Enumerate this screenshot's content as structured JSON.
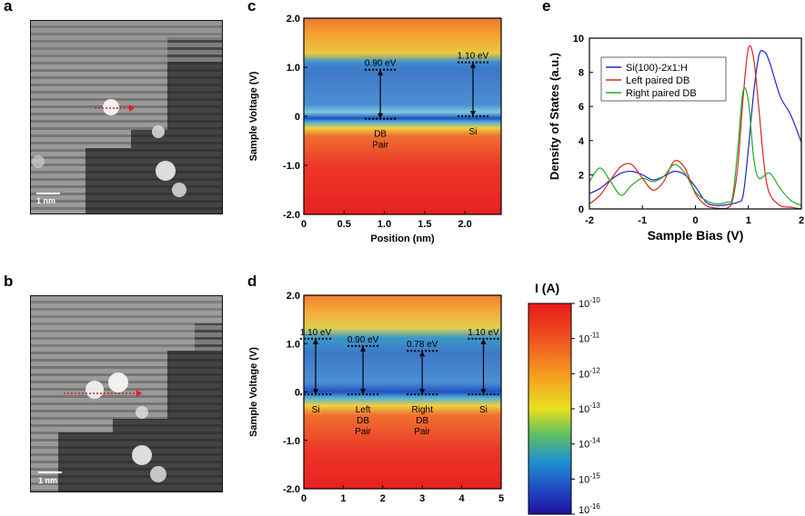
{
  "panels": {
    "a": "a",
    "b": "b",
    "c": "c",
    "d": "d",
    "e": "e"
  },
  "scale_bar_label": "1 nm",
  "chart_data": [
    {
      "id": "c",
      "type": "heatmap",
      "xlabel": "Position (nm)",
      "ylabel": "Sample Voltage (V)",
      "xlim": [
        0,
        2.45
      ],
      "ylim": [
        -2.0,
        2.0
      ],
      "xticks": [
        "0",
        "0.5",
        "1.0",
        "1.5",
        "2.0"
      ],
      "xtick_values": [
        0,
        0.5,
        1.0,
        1.5,
        2.0
      ],
      "yticks": [
        "2.0",
        "1.0",
        "0",
        "-1.0",
        "-2.0"
      ],
      "ytick_values": [
        2.0,
        1.0,
        0,
        -1.0,
        -2.0
      ],
      "gaps": [
        {
          "label": "0.90 eV",
          "x": 0.95,
          "top": 0.95,
          "bottom": -0.05,
          "site": [
            "DB",
            "Pair"
          ]
        },
        {
          "label": "1.10 eV",
          "x": 2.1,
          "top": 1.1,
          "bottom": 0.0,
          "site": [
            "Si"
          ]
        }
      ]
    },
    {
      "id": "d",
      "type": "heatmap",
      "xlabel": "",
      "ylabel": "Sample Voltage (V)",
      "xlim": [
        0,
        5.0
      ],
      "ylim": [
        -2.0,
        2.0
      ],
      "xticks": [
        "0",
        "1",
        "2",
        "3",
        "4",
        "5"
      ],
      "xtick_values": [
        0,
        1,
        2,
        3,
        4,
        5
      ],
      "yticks": [
        "2.0",
        "1.0",
        "0",
        "-1.0",
        "-2.0"
      ],
      "ytick_values": [
        2.0,
        1.0,
        0,
        -1.0,
        -2.0
      ],
      "gaps": [
        {
          "label": "1.10 eV",
          "x": 0.3,
          "top": 1.1,
          "bottom": -0.05,
          "site": [
            "Si"
          ]
        },
        {
          "label": "0.90 eV",
          "x": 1.5,
          "top": 0.95,
          "bottom": -0.05,
          "site": [
            "Left",
            "DB",
            "Pair"
          ]
        },
        {
          "label": "0.78 eV",
          "x": 3.0,
          "top": 0.85,
          "bottom": -0.05,
          "site": [
            "Right",
            "DB",
            "Pair"
          ]
        },
        {
          "label": "1.10 eV",
          "x": 4.55,
          "top": 1.1,
          "bottom": -0.05,
          "site": [
            "Si"
          ]
        }
      ]
    },
    {
      "id": "e",
      "type": "line",
      "xlabel": "Sample Bias (V)",
      "ylabel": "Density of States (a.u.)",
      "xlim": [
        -2,
        2
      ],
      "ylim": [
        0,
        10
      ],
      "xticks": [
        "-2",
        "-1",
        "0",
        "1",
        "2"
      ],
      "xtick_values": [
        -2,
        -1,
        0,
        1,
        2
      ],
      "yticks": [
        "10",
        "8",
        "6",
        "4",
        "2",
        "0"
      ],
      "ytick_values": [
        10,
        8,
        6,
        4,
        2,
        0
      ],
      "legend_position": "top-right",
      "series": [
        {
          "name": "Si(100)-2x1:H",
          "color": "#2222cc",
          "x": [
            -2,
            -1.8,
            -1.6,
            -1.4,
            -1.2,
            -1.0,
            -0.8,
            -0.6,
            -0.4,
            -0.2,
            0.0,
            0.2,
            0.4,
            0.6,
            0.8,
            0.9,
            1.0,
            1.1,
            1.2,
            1.3,
            1.4,
            1.6,
            1.8,
            2.0
          ],
          "y": [
            0.9,
            1.2,
            1.7,
            2.1,
            2.2,
            2.0,
            1.7,
            1.9,
            2.2,
            2.0,
            1.3,
            0.4,
            0.2,
            0.25,
            0.4,
            0.8,
            3.5,
            6.8,
            9.0,
            9.2,
            8.6,
            6.6,
            5.5,
            3.9
          ]
        },
        {
          "name": "Left paired DB",
          "color": "#dd2222",
          "x": [
            -2,
            -1.8,
            -1.6,
            -1.4,
            -1.2,
            -1.0,
            -0.8,
            -0.6,
            -0.4,
            -0.2,
            0.0,
            0.2,
            0.4,
            0.6,
            0.7,
            0.8,
            0.9,
            1.0,
            1.1,
            1.2,
            1.3,
            1.4,
            1.6,
            1.8,
            2.0
          ],
          "y": [
            0.3,
            0.8,
            1.7,
            2.5,
            2.6,
            1.8,
            1.1,
            1.6,
            2.8,
            2.4,
            0.9,
            0.2,
            0.05,
            0.05,
            0.5,
            2.5,
            6.5,
            9.4,
            8.8,
            5.8,
            2.5,
            0.9,
            0.2,
            0.1,
            0.0
          ]
        },
        {
          "name": "Right paired DB",
          "color": "#22aa22",
          "x": [
            -2,
            -1.8,
            -1.6,
            -1.4,
            -1.2,
            -1.0,
            -0.8,
            -0.6,
            -0.4,
            -0.2,
            0.0,
            0.2,
            0.4,
            0.6,
            0.7,
            0.8,
            0.9,
            1.0,
            1.1,
            1.2,
            1.4,
            1.6,
            1.8,
            2.0
          ],
          "y": [
            1.6,
            2.4,
            1.6,
            0.8,
            1.4,
            1.8,
            1.6,
            1.9,
            2.6,
            2.1,
            1.0,
            0.5,
            0.3,
            0.4,
            0.7,
            3.5,
            6.9,
            6.3,
            3.0,
            1.8,
            2.1,
            1.2,
            0.5,
            0.2
          ]
        }
      ]
    }
  ],
  "colorbar": {
    "title": "I (A)",
    "labels": [
      {
        "base": "10",
        "exp": "-10"
      },
      {
        "base": "10",
        "exp": "-11"
      },
      {
        "base": "10",
        "exp": "-12"
      },
      {
        "base": "10",
        "exp": "-13"
      },
      {
        "base": "10",
        "exp": "-14"
      },
      {
        "base": "10",
        "exp": "-15"
      },
      {
        "base": "10",
        "exp": "-16"
      }
    ]
  }
}
